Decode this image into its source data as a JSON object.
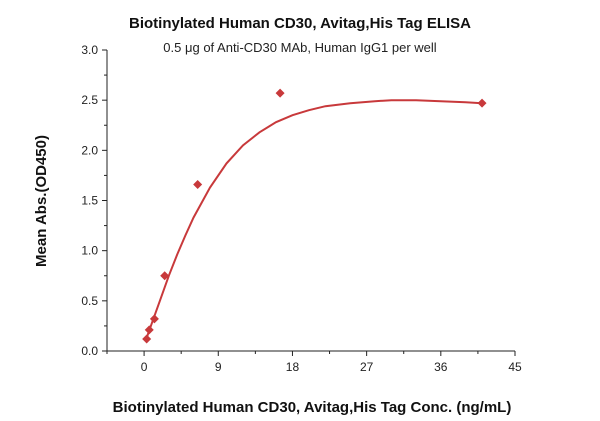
{
  "chart_data": {
    "type": "scatter",
    "title": "Biotinylated Human CD30, Avitag,His Tag ELISA",
    "subtitle": "0.5 μg of Anti-CD30 MAb, Human IgG1 per well",
    "xlabel": "Biotinylated Human CD30, Avitag,His Tag Conc. (ng/mL)",
    "ylabel": "Mean Abs.(OD450)",
    "xlim": [
      -4.5,
      45
    ],
    "ylim": [
      0,
      3.0
    ],
    "xticks": [
      0,
      9,
      18,
      27,
      36,
      45
    ],
    "yticks": [
      0.0,
      0.5,
      1.0,
      1.5,
      2.0,
      2.5,
      3.0
    ],
    "ytick_labels": [
      "0.0",
      "0.5",
      "1.0",
      "1.5",
      "2.0",
      "2.5",
      "3.0"
    ],
    "grid": false,
    "series": [
      {
        "x": [
          0.3125,
          0.625,
          1.25,
          2.5,
          6.5,
          16.5,
          41
        ],
        "values": [
          0.12,
          0.21,
          0.32,
          0.75,
          1.66,
          2.57,
          2.47
        ],
        "color": "#c8393b",
        "marker": "diamond"
      }
    ],
    "fit_curve": {
      "x": [
        0.3,
        1,
        2,
        3,
        4,
        5,
        6,
        8,
        10,
        12,
        14,
        16,
        18,
        20,
        22,
        25,
        28,
        30,
        33,
        36,
        39,
        41
      ],
      "values": [
        0.13,
        0.29,
        0.52,
        0.75,
        0.96,
        1.15,
        1.33,
        1.63,
        1.87,
        2.05,
        2.18,
        2.28,
        2.35,
        2.4,
        2.44,
        2.47,
        2.49,
        2.5,
        2.5,
        2.49,
        2.48,
        2.47
      ],
      "color": "#c8393b"
    }
  }
}
